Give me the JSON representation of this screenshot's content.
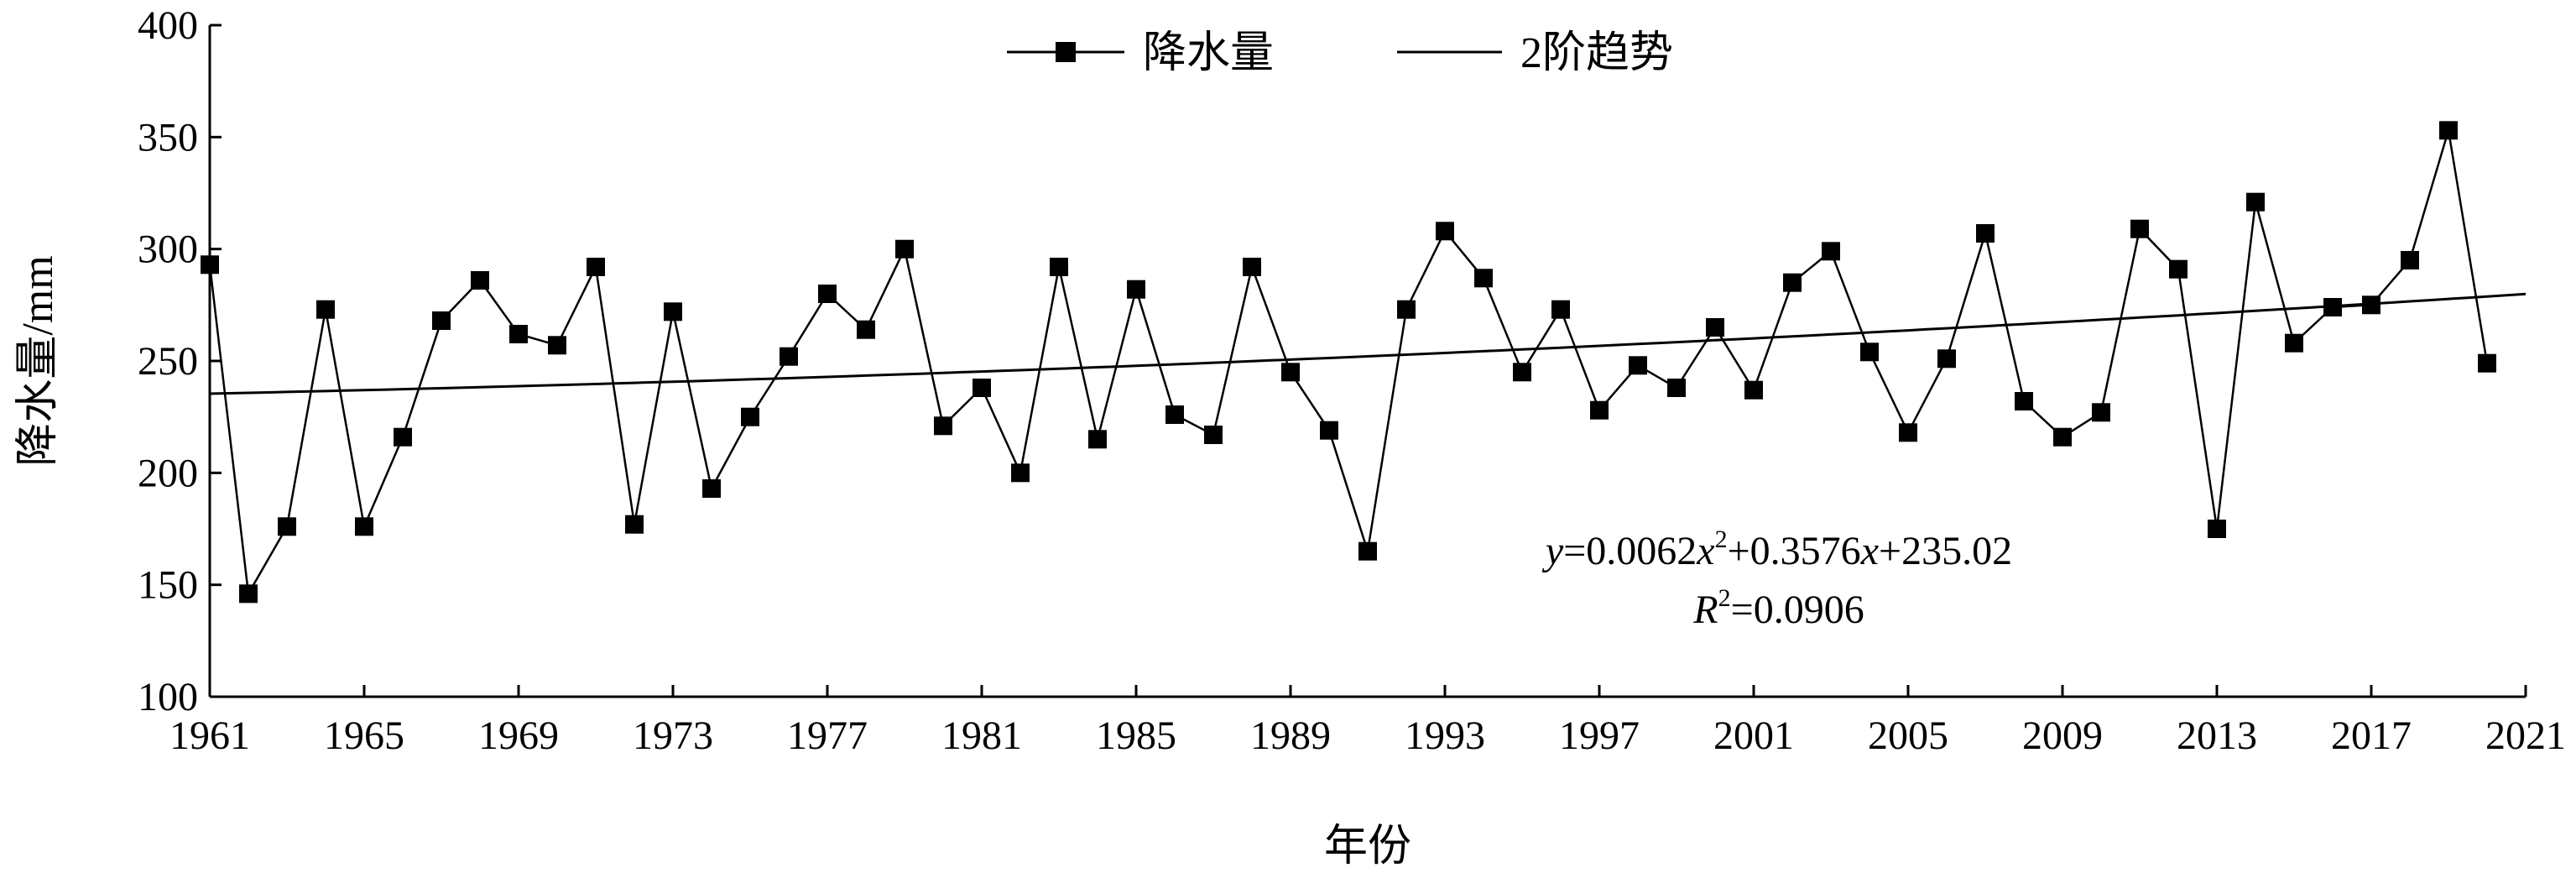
{
  "chart_data": {
    "type": "line",
    "title": "",
    "xlabel": "年份",
    "ylabel": "降水量/mm",
    "xlim": [
      1961,
      2021
    ],
    "ylim": [
      100,
      400
    ],
    "x_ticks": [
      "1961",
      "1965",
      "1969",
      "1973",
      "1977",
      "1981",
      "1985",
      "1989",
      "1993",
      "1997",
      "2001",
      "2005",
      "2009",
      "2013",
      "2017",
      "2021"
    ],
    "y_ticks": [
      "100",
      "150",
      "200",
      "250",
      "300",
      "350",
      "400"
    ],
    "legend_position": "top-center",
    "grid": false,
    "x": [
      1961,
      1962,
      1963,
      1964,
      1965,
      1966,
      1967,
      1968,
      1969,
      1970,
      1971,
      1972,
      1973,
      1974,
      1975,
      1976,
      1977,
      1978,
      1979,
      1980,
      1981,
      1982,
      1983,
      1984,
      1985,
      1986,
      1987,
      1988,
      1989,
      1990,
      1991,
      1992,
      1993,
      1994,
      1995,
      1996,
      1997,
      1998,
      1999,
      2000,
      2001,
      2002,
      2003,
      2004,
      2005,
      2006,
      2007,
      2008,
      2009,
      2010,
      2011,
      2012,
      2013,
      2014,
      2015,
      2016,
      2017,
      2018,
      2019,
      2020
    ],
    "series": [
      {
        "name": "降水量",
        "marker": "square",
        "color": "#000000",
        "values": [
          293,
          146,
          176,
          273,
          176,
          216,
          268,
          286,
          262,
          257,
          292,
          177,
          272,
          193,
          225,
          252,
          280,
          264,
          300,
          221,
          238,
          200,
          292,
          215,
          282,
          226,
          217,
          292,
          245,
          219,
          165,
          273,
          308,
          287,
          245,
          273,
          228,
          248,
          238,
          265,
          237,
          285,
          299,
          254,
          218,
          251,
          307,
          232,
          216,
          227,
          309,
          291,
          175,
          321,
          258,
          274,
          275,
          295,
          353,
          249
        ]
      },
      {
        "name": "2阶趋势",
        "style": "line",
        "color": "#000000",
        "trend": {
          "a": 0.0062,
          "b": 0.3576,
          "c": 235.02,
          "x_start": 1961
        }
      }
    ],
    "annotations": {
      "equation_var": "y",
      "equation_rest_1": "=0.0062",
      "equation_x1": "x",
      "equation_sup": "2",
      "equation_rest_2": "+0.3576",
      "equation_x2": "x",
      "equation_rest_3": "+235.02",
      "r2_var": "R",
      "r2_sup": "2",
      "r2_rest": "=0.0906"
    }
  }
}
